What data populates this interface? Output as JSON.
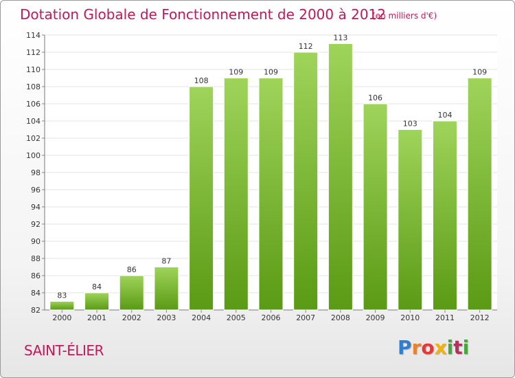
{
  "header": {
    "title": "Dotation Globale de Fonctionnement de 2000 à 2012",
    "unit_note": "(en milliers d'€)"
  },
  "footer": {
    "commune": "SAINT-ÉLIER",
    "logo_letters": [
      "P",
      "r",
      "o",
      "x",
      "i",
      "t",
      "i"
    ]
  },
  "colors": {
    "title": "#c2185b",
    "bar_top": "#9fd45a",
    "bar_bottom": "#5a9a14",
    "grid": "#e3e3e3"
  },
  "chart_data": {
    "type": "bar",
    "title": "Dotation Globale de Fonctionnement de 2000 à 2012",
    "subtitle": "(en milliers d'€)",
    "categories": [
      "2000",
      "2001",
      "2002",
      "2003",
      "2004",
      "2005",
      "2006",
      "2007",
      "2008",
      "2009",
      "2010",
      "2011",
      "2012"
    ],
    "values": [
      83,
      84,
      86,
      87,
      108,
      109,
      109,
      112,
      113,
      106,
      103,
      104,
      109
    ],
    "ylim": [
      82,
      114
    ],
    "yticks": [
      82,
      84,
      86,
      88,
      90,
      92,
      94,
      96,
      98,
      100,
      102,
      104,
      106,
      108,
      110,
      112,
      114
    ],
    "grid": true,
    "data_labels": true
  }
}
